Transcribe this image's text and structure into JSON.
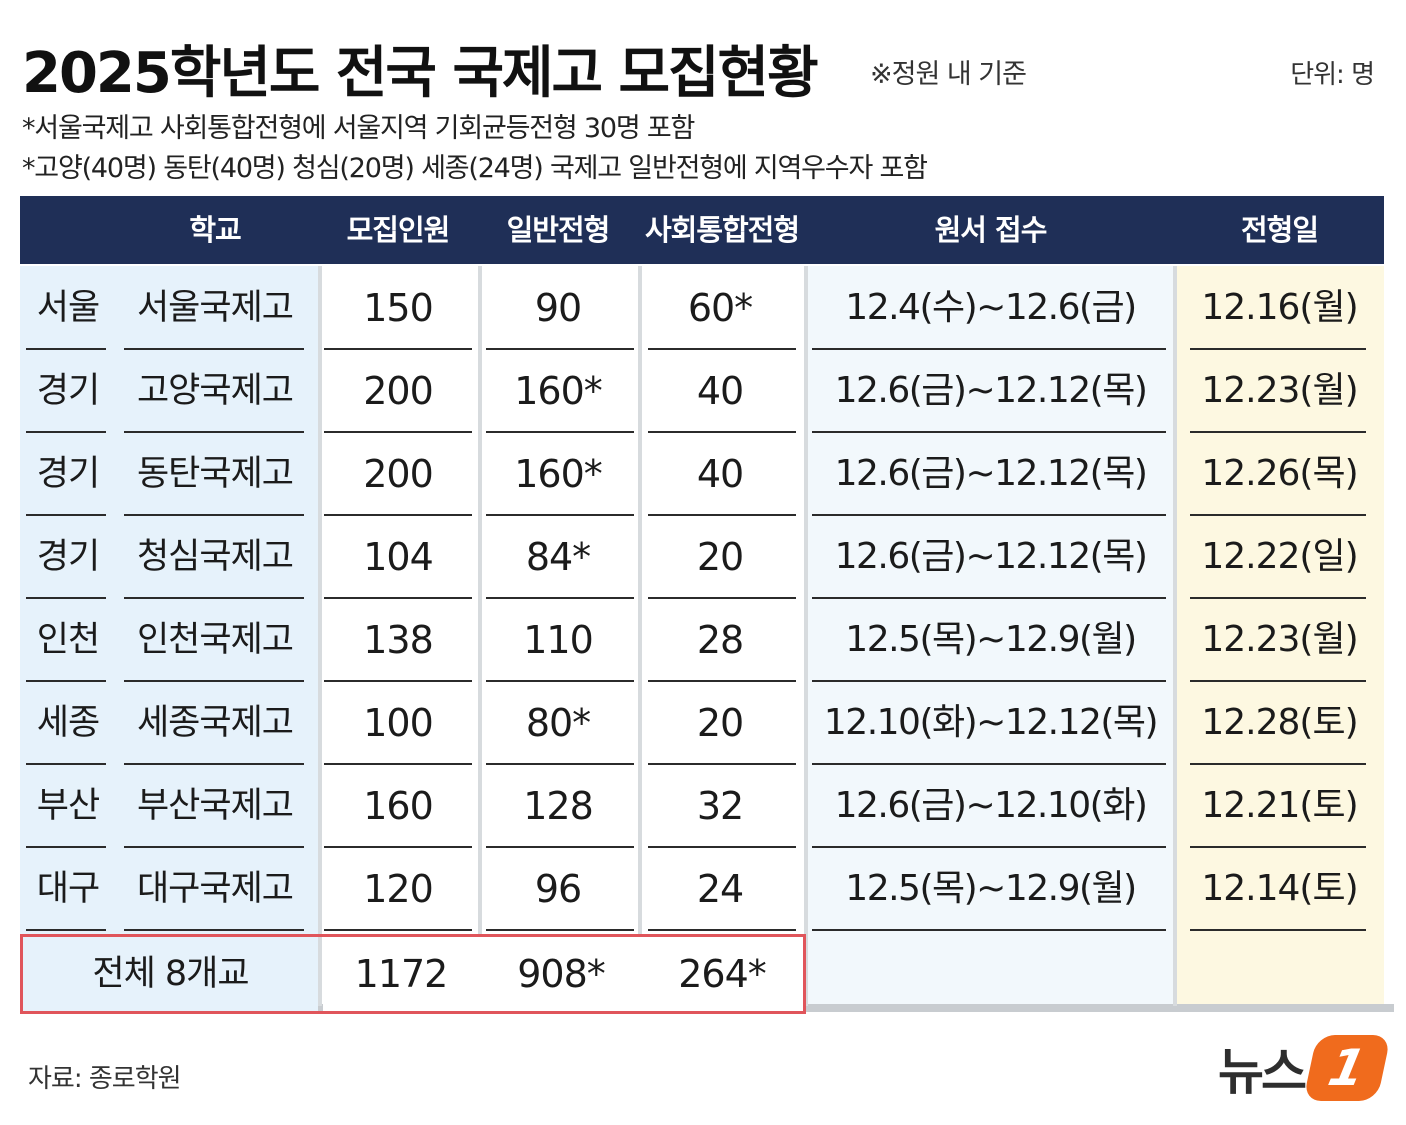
{
  "title": "2025학년도 전국 국제고 모집현황",
  "subtitle": "※정원 내 기준",
  "unit": "단위: 명",
  "notes": [
    "*서울국제고 사회통합전형에 서울지역 기회균등전형 30명 포함",
    "*고양(40명) 동탄(40명) 청심(20명) 세종(24명) 국제고 일반전형에 지역우수자 포함"
  ],
  "table": {
    "headers": {
      "school": "학교",
      "total": "모집인원",
      "general": "일반전형",
      "social": "사회통합전형",
      "application": "원서 접수",
      "exam": "전형일"
    },
    "rows": [
      {
        "region": "서울",
        "school": "서울국제고",
        "total": "150",
        "general": "90",
        "social": "60*",
        "application": "12.4(수)~12.6(금)",
        "exam": "12.16(월)"
      },
      {
        "region": "경기",
        "school": "고양국제고",
        "total": "200",
        "general": "160*",
        "social": "40",
        "application": "12.6(금)~12.12(목)",
        "exam": "12.23(월)"
      },
      {
        "region": "경기",
        "school": "동탄국제고",
        "total": "200",
        "general": "160*",
        "social": "40",
        "application": "12.6(금)~12.12(목)",
        "exam": "12.26(목)"
      },
      {
        "region": "경기",
        "school": "청심국제고",
        "total": "104",
        "general": "84*",
        "social": "20",
        "application": "12.6(금)~12.12(목)",
        "exam": "12.22(일)"
      },
      {
        "region": "인천",
        "school": "인천국제고",
        "total": "138",
        "general": "110",
        "social": "28",
        "application": "12.5(목)~12.9(월)",
        "exam": "12.23(월)"
      },
      {
        "region": "세종",
        "school": "세종국제고",
        "total": "100",
        "general": "80*",
        "social": "20",
        "application": "12.10(화)~12.12(목)",
        "exam": "12.28(토)"
      },
      {
        "region": "부산",
        "school": "부산국제고",
        "total": "160",
        "general": "128",
        "social": "32",
        "application": "12.6(금)~12.10(화)",
        "exam": "12.21(토)"
      },
      {
        "region": "대구",
        "school": "대구국제고",
        "total": "120",
        "general": "96",
        "social": "24",
        "application": "12.5(목)~12.9(월)",
        "exam": "12.14(토)"
      }
    ],
    "summary": {
      "label": "전체 8개교",
      "total": "1172",
      "general": "908*",
      "social": "264*"
    }
  },
  "source": "자료: 종로학원",
  "logo": {
    "text": "뉴스",
    "mark": "1"
  },
  "colors": {
    "header": "#1f2f57",
    "left_bg": "#e6f2fb",
    "date_bg": "#fdf8e1",
    "total_border": "#e0555b",
    "logo": "#f06b1d"
  }
}
